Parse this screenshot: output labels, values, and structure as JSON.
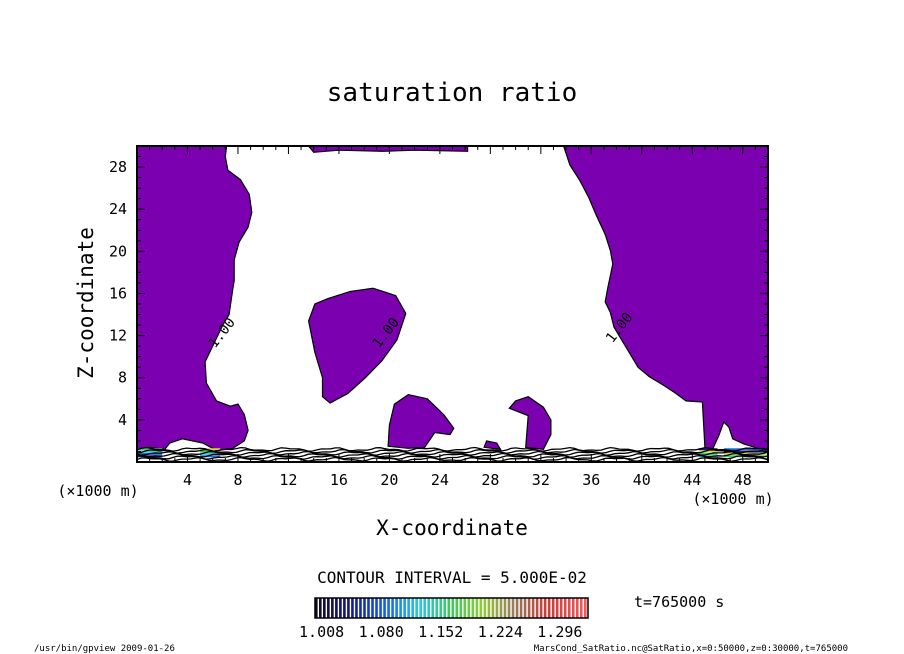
{
  "chart_data": {
    "type": "contour",
    "title": "saturation ratio",
    "xlabel": "X-coordinate",
    "ylabel": "Z-coordinate",
    "x_unit": "(×1000 m)",
    "z_unit": "(×1000 m)",
    "xlim": [
      0,
      50
    ],
    "ylim": [
      0,
      30
    ],
    "x_ticks": [
      4,
      8,
      12,
      16,
      20,
      24,
      28,
      32,
      36,
      40,
      44,
      48
    ],
    "y_ticks": [
      4,
      8,
      12,
      16,
      20,
      24,
      28
    ],
    "contour_labels": [
      {
        "text": "1.00",
        "x": 7.0,
        "z": 12.0
      },
      {
        "text": "1.00",
        "x": 20.0,
        "z": 12.0
      },
      {
        "text": "1.00",
        "x": 38.5,
        "z": 12.5
      }
    ],
    "contour_interval_text": "CONTOUR INTERVAL = 5.000E-02",
    "colorbar_ticks": [
      "1.008",
      "1.080",
      "1.152",
      "1.224",
      "1.296"
    ],
    "colorbar_range": [
      1.0,
      1.33
    ],
    "time_label": "t=765000 s",
    "regions": [
      {
        "name": "left-saturated-region",
        "points": [
          [
            0,
            30
          ],
          [
            7.1,
            30
          ],
          [
            7.0,
            29
          ],
          [
            7.2,
            27.7
          ],
          [
            8.2,
            26.8
          ],
          [
            8.9,
            25.4
          ],
          [
            9.1,
            23.7
          ],
          [
            8.8,
            22.3
          ],
          [
            8.1,
            20.9
          ],
          [
            7.7,
            19.2
          ],
          [
            7.7,
            17.2
          ],
          [
            7.6,
            16.5
          ],
          [
            7.3,
            14
          ],
          [
            6.8,
            13
          ],
          [
            6.2,
            11.5
          ],
          [
            5.4,
            9.5
          ],
          [
            5.5,
            7.5
          ],
          [
            6.3,
            5.8
          ],
          [
            7.4,
            5.3
          ],
          [
            8.0,
            5.5
          ],
          [
            8.5,
            4.5
          ],
          [
            8.8,
            3
          ],
          [
            8.5,
            2
          ],
          [
            7.6,
            1.3
          ],
          [
            6.3,
            1.1
          ],
          [
            5.2,
            1.8
          ],
          [
            3.6,
            2.2
          ],
          [
            2.6,
            1.8
          ],
          [
            2.2,
            1.2
          ],
          [
            1.0,
            1.4
          ],
          [
            0,
            1.2
          ]
        ]
      },
      {
        "name": "right-saturated-region",
        "points": [
          [
            33.8,
            30
          ],
          [
            50,
            30
          ],
          [
            50,
            1.2
          ],
          [
            49.2,
            1.3
          ],
          [
            48.1,
            1.7
          ],
          [
            47.2,
            2.2
          ],
          [
            46.9,
            3.3
          ],
          [
            46.5,
            3.8
          ],
          [
            46.1,
            2.5
          ],
          [
            45.6,
            1.2
          ],
          [
            45.0,
            1.4
          ],
          [
            44.8,
            5.7
          ],
          [
            43.5,
            5.8
          ],
          [
            42.6,
            6.6
          ],
          [
            41.7,
            7.3
          ],
          [
            40.6,
            8.1
          ],
          [
            39.7,
            9.0
          ],
          [
            38.9,
            10.6
          ],
          [
            37.8,
            12.8
          ],
          [
            37.5,
            14.2
          ],
          [
            37.1,
            15.2
          ],
          [
            37.3,
            16.5
          ],
          [
            37.7,
            18.8
          ],
          [
            37.5,
            20.1
          ],
          [
            37.1,
            21.6
          ],
          [
            36.4,
            23.4
          ],
          [
            35.8,
            25.1
          ],
          [
            35.1,
            26.7
          ],
          [
            34.3,
            28.2
          ]
        ]
      },
      {
        "name": "top-saturated-sliver",
        "points": [
          [
            13.6,
            30
          ],
          [
            26.2,
            30
          ],
          [
            26.2,
            29.5
          ],
          [
            22,
            29.6
          ],
          [
            19.5,
            29.5
          ],
          [
            16,
            29.6
          ],
          [
            14,
            29.4
          ]
        ]
      },
      {
        "name": "center-saturated-blob",
        "points": [
          [
            14.7,
            6.2
          ],
          [
            14.7,
            8.0
          ],
          [
            14.1,
            10.4
          ],
          [
            13.6,
            13.4
          ],
          [
            14.1,
            15.0
          ],
          [
            15.1,
            15.5
          ],
          [
            16.9,
            16.2
          ],
          [
            18.7,
            16.5
          ],
          [
            20.5,
            15.8
          ],
          [
            21.3,
            14.1
          ],
          [
            20.6,
            11.6
          ],
          [
            19.4,
            9.6
          ],
          [
            18.1,
            8.0
          ],
          [
            16.7,
            6.5
          ],
          [
            15.3,
            5.6
          ]
        ]
      },
      {
        "name": "lower-center-blob",
        "points": [
          [
            19.9,
            1.5
          ],
          [
            20.0,
            3.5
          ],
          [
            20.4,
            5.5
          ],
          [
            21.5,
            6.4
          ],
          [
            23.0,
            6.0
          ],
          [
            24.3,
            4.5
          ],
          [
            25.1,
            3.2
          ],
          [
            24.8,
            2.6
          ],
          [
            23.6,
            2.8
          ],
          [
            22.8,
            1.4
          ],
          [
            21.5,
            1.3
          ]
        ]
      },
      {
        "name": "lower-right-blob",
        "points": [
          [
            30.8,
            1.4
          ],
          [
            31.0,
            4.4
          ],
          [
            29.5,
            5.1
          ],
          [
            30.0,
            5.8
          ],
          [
            31.0,
            6.2
          ],
          [
            32.2,
            5.2
          ],
          [
            32.8,
            4.0
          ],
          [
            32.8,
            2.6
          ],
          [
            32.2,
            1.2
          ]
        ]
      },
      {
        "name": "small-blob",
        "points": [
          [
            27.5,
            1.4
          ],
          [
            27.7,
            2.0
          ],
          [
            28.5,
            1.8
          ],
          [
            28.8,
            1.2
          ]
        ]
      }
    ],
    "colors": {
      "saturated_fill": "#7a00b0",
      "background": "#ffffff",
      "low_band_colors": [
        "#1d1a8a",
        "#1b6ce0",
        "#28d0e8",
        "#3ad05a",
        "#d7d640"
      ]
    }
  },
  "footer": {
    "left": "/usr/bin/gpview  2009-01-26",
    "right": "MarsCond_SatRatio.nc@SatRatio,x=0:50000,z=0:30000,t=765000"
  }
}
